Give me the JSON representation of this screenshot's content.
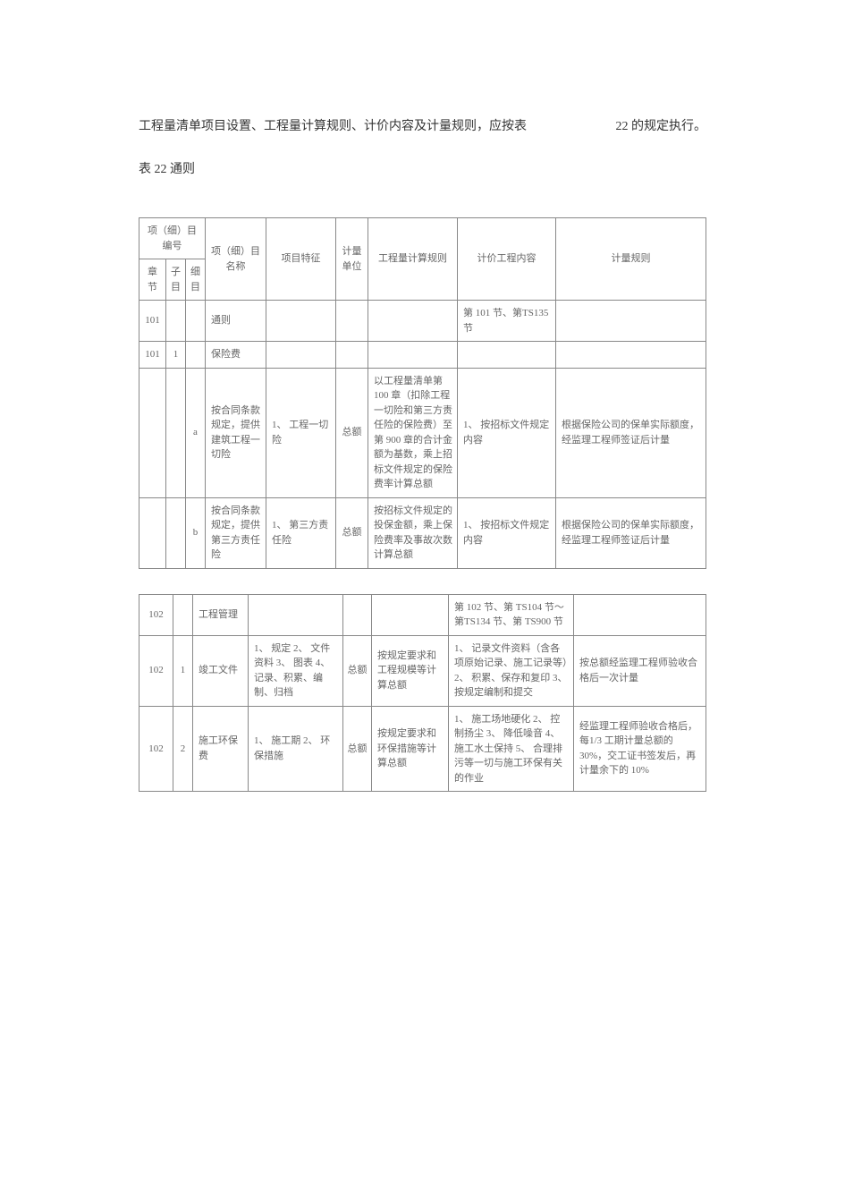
{
  "intro": {
    "left": "工程量清单项目设置、工程量计算规则、计价内容及计量规则，应按表",
    "right": "22 的规定执行。"
  },
  "table_title": "表 22  通则",
  "table1": {
    "headers": {
      "group_code": "项（细）目编号",
      "chapter": "章节",
      "sub": "子目",
      "detail": "细目",
      "name": "项（细）目名称",
      "feature": "项目特征",
      "unit": "计量单位",
      "qty_rule": "工程量计算规则",
      "price_content": "计价工程内容",
      "measure_rule": "计量规则"
    },
    "rows": [
      {
        "chapter": "101",
        "sub": "",
        "detail": "",
        "name": "通则",
        "feature": "",
        "unit": "",
        "qty_rule": "",
        "price_content": "第 101 节、第TS135 节",
        "measure_rule": ""
      },
      {
        "chapter": "101",
        "sub": "1",
        "detail": "",
        "name": "保险费",
        "feature": "",
        "unit": "",
        "qty_rule": "",
        "price_content": "",
        "measure_rule": ""
      },
      {
        "chapter": "",
        "sub": "",
        "detail": "a",
        "name": "按合同条款规定，提供建筑工程一切险",
        "feature": "1、  工程一切险",
        "unit": "总额",
        "qty_rule": "以工程量清单第 100 章（扣除工程一切险和第三方责任险的保险费）至第 900 章的合计金额为基数，乘上招标文件规定的保险费率计算总额",
        "price_content": "1、 按招标文件规定内容",
        "measure_rule": "根据保险公司的保单实际额度，经监理工程师签证后计量"
      },
      {
        "chapter": "",
        "sub": "",
        "detail": "b",
        "name": "按合同条款规定，提供第三方责任险",
        "feature": "1、  第三方责任险",
        "unit": "总额",
        "qty_rule": "按招标文件规定的投保金额，乘上保险费率及事故次数计算总额",
        "price_content": "1、 按招标文件规定内容",
        "measure_rule": "根据保险公司的保单实际额度，经监理工程师签证后计量"
      }
    ]
  },
  "table2": {
    "rows": [
      {
        "chapter": "102",
        "sub": "",
        "name": "工程管理",
        "feature": "",
        "unit": "",
        "qty_rule": "",
        "price_content": "第 102 节、第 TS104 节～第TS134 节、第 TS900 节",
        "measure_rule": ""
      },
      {
        "chapter": "102",
        "sub": "1",
        "name": "竣工文件",
        "feature": "1、 规定 2、 文件资料  3、  图表  4、 记录、积累、编制、归档",
        "unit": "总额",
        "qty_rule": "按规定要求和工程规模等计算总额",
        "price_content": "1、  记录文件资料（含各项原始记录、施工记录等）2、 积累、保存和复印 3、按规定编制和提交",
        "measure_rule": "按总额经监理工程师验收合格后一次计量"
      },
      {
        "chapter": "102",
        "sub": "2",
        "name": "施工环保费",
        "feature": "1、  施工期 2、 环保措施",
        "unit": "总额",
        "qty_rule": "按规定要求和环保措施等计算总额",
        "price_content": "1、 施工场地硬化 2、 控制扬尘 3、 降低噪音 4、 施工水土保持 5、 合理排污等一切与施工环保有关的作业",
        "measure_rule": "经监理工程师验收合格后，每1/3 工期计量总额的 30%，交工证书签发后，再计量余下的 10%"
      }
    ]
  }
}
